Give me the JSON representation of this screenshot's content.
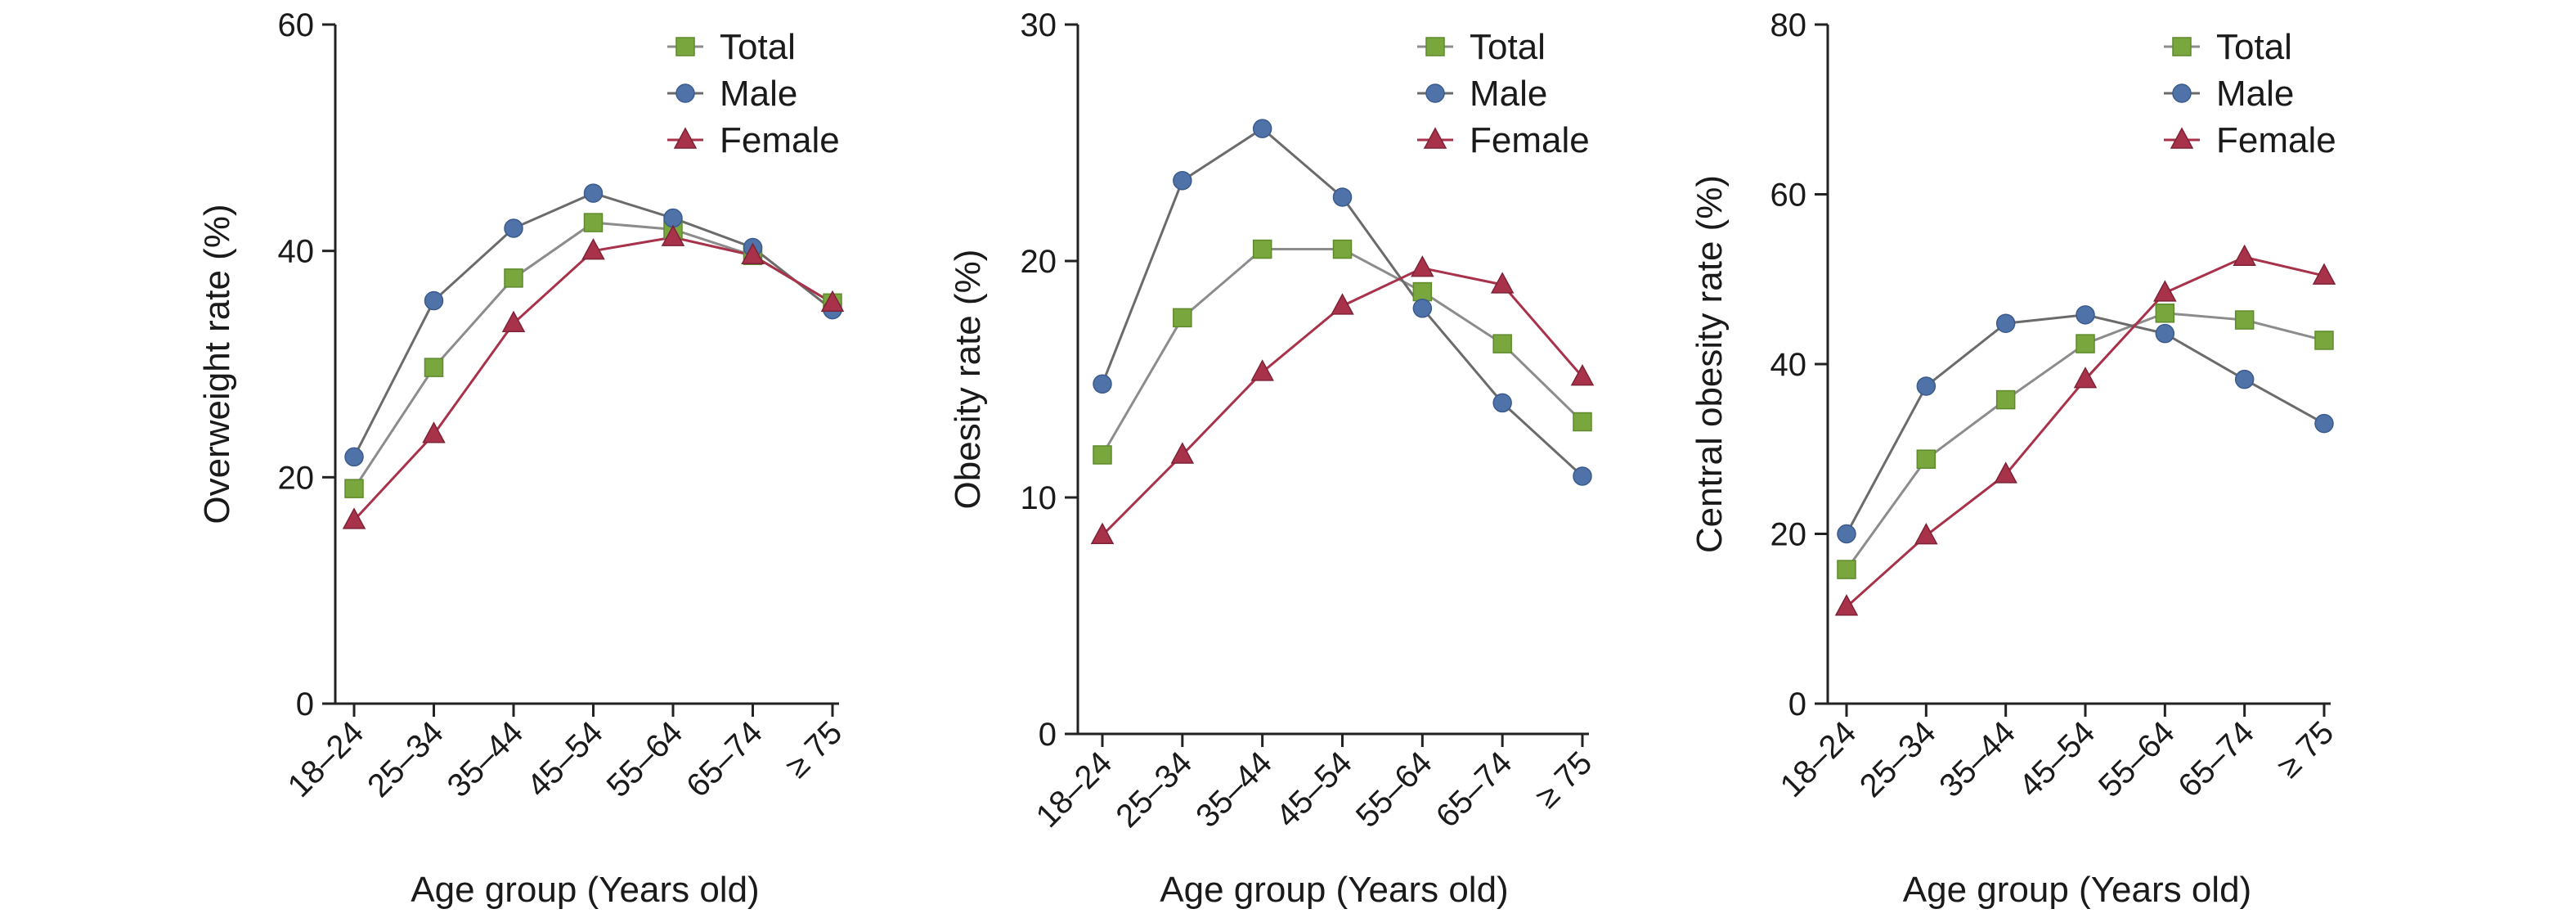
{
  "chart_data": [
    {
      "type": "line",
      "xlabel": "Age group (Years old)",
      "ylabel": "Overweight rate (%)",
      "categories": [
        "18–24",
        "25–34",
        "35–44",
        "45–54",
        "55–64",
        "65–74",
        "≥ 75"
      ],
      "ylim": [
        0,
        60
      ],
      "yticks": [
        0,
        20,
        40,
        60
      ],
      "legend_position": "top-right",
      "grid": false,
      "series": [
        {
          "name": "Total",
          "marker": "square",
          "color": "#7aa63e",
          "line_color": "#8c8c8c",
          "values": [
            19.0,
            29.7,
            37.6,
            42.5,
            41.9,
            39.6,
            35.4
          ]
        },
        {
          "name": "Male",
          "marker": "circle",
          "color": "#4f72a8",
          "line_color": "#6b6b6b",
          "values": [
            21.8,
            35.6,
            42.0,
            45.1,
            42.9,
            40.3,
            34.8
          ]
        },
        {
          "name": "Female",
          "marker": "triangle",
          "color": "#a8324a",
          "line_color": "#a8324a",
          "values": [
            16.2,
            23.8,
            33.6,
            40.0,
            41.2,
            39.6,
            35.4
          ]
        }
      ]
    },
    {
      "type": "line",
      "xlabel": "Age group (Years old)",
      "ylabel": "Obesity rate (%)",
      "categories": [
        "18–24",
        "25–34",
        "35–44",
        "45–54",
        "55–64",
        "65–74",
        "≥ 75"
      ],
      "ylim": [
        0,
        30
      ],
      "yticks": [
        0,
        10,
        20,
        30
      ],
      "legend_position": "top-right",
      "grid": false,
      "series": [
        {
          "name": "Total",
          "marker": "square",
          "color": "#7aa63e",
          "line_color": "#8c8c8c",
          "values": [
            11.8,
            17.6,
            20.5,
            20.5,
            18.7,
            16.5,
            13.2
          ]
        },
        {
          "name": "Male",
          "marker": "circle",
          "color": "#4f72a8",
          "line_color": "#6b6b6b",
          "values": [
            14.8,
            23.4,
            25.6,
            22.7,
            18.0,
            14.0,
            10.9
          ]
        },
        {
          "name": "Female",
          "marker": "triangle",
          "color": "#a8324a",
          "line_color": "#a8324a",
          "values": [
            8.4,
            11.8,
            15.3,
            18.1,
            19.7,
            19.0,
            15.1
          ]
        }
      ]
    },
    {
      "type": "line",
      "xlabel": "Age group (Years old)",
      "ylabel": "Central obesity rate (%)",
      "categories": [
        "18–24",
        "25–34",
        "35–44",
        "45–54",
        "55–64",
        "65–74",
        "≥ 75"
      ],
      "ylim": [
        0,
        80
      ],
      "yticks": [
        0,
        20,
        40,
        60,
        80
      ],
      "legend_position": "top-right",
      "grid": false,
      "series": [
        {
          "name": "Total",
          "marker": "square",
          "color": "#7aa63e",
          "line_color": "#8c8c8c",
          "values": [
            15.8,
            28.8,
            35.8,
            42.4,
            46.0,
            45.2,
            42.8
          ]
        },
        {
          "name": "Male",
          "marker": "circle",
          "color": "#4f72a8",
          "line_color": "#6b6b6b",
          "values": [
            20.0,
            37.4,
            44.8,
            45.8,
            43.6,
            38.2,
            33.0
          ]
        },
        {
          "name": "Female",
          "marker": "triangle",
          "color": "#a8324a",
          "line_color": "#a8324a",
          "values": [
            11.4,
            19.8,
            27.0,
            38.2,
            48.4,
            52.6,
            50.4
          ]
        }
      ]
    }
  ]
}
